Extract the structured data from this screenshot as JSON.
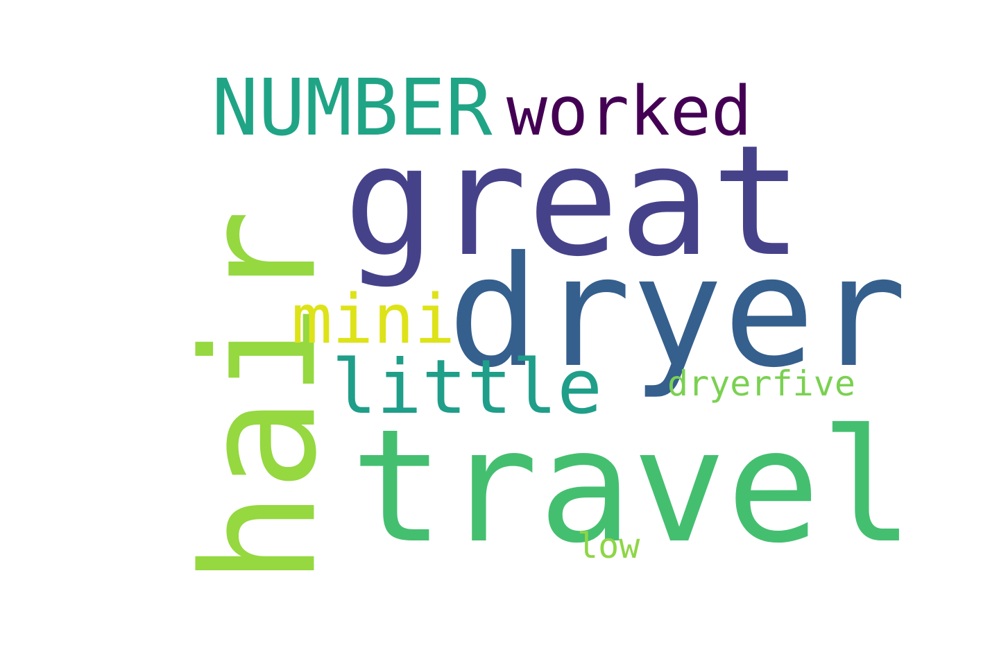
{
  "words": {
    "great": {
      "text": "great",
      "color": "#46428a"
    },
    "dryer": {
      "text": "dryer",
      "color": "#355f8d"
    },
    "travel": {
      "text": "travel",
      "color": "#44bf70"
    },
    "hair": {
      "text": "hair",
      "color": "#95d840"
    },
    "number": {
      "text": "NUMBER",
      "color": "#20a486"
    },
    "worked": {
      "text": "worked",
      "color": "#440154"
    },
    "little": {
      "text": "little",
      "color": "#1f9e89"
    },
    "mini": {
      "text": "mini",
      "color": "#dde318"
    },
    "dryerfive": {
      "text": "dryerfive",
      "color": "#7ad151"
    },
    "low": {
      "text": "low",
      "color": "#8ed645"
    }
  }
}
